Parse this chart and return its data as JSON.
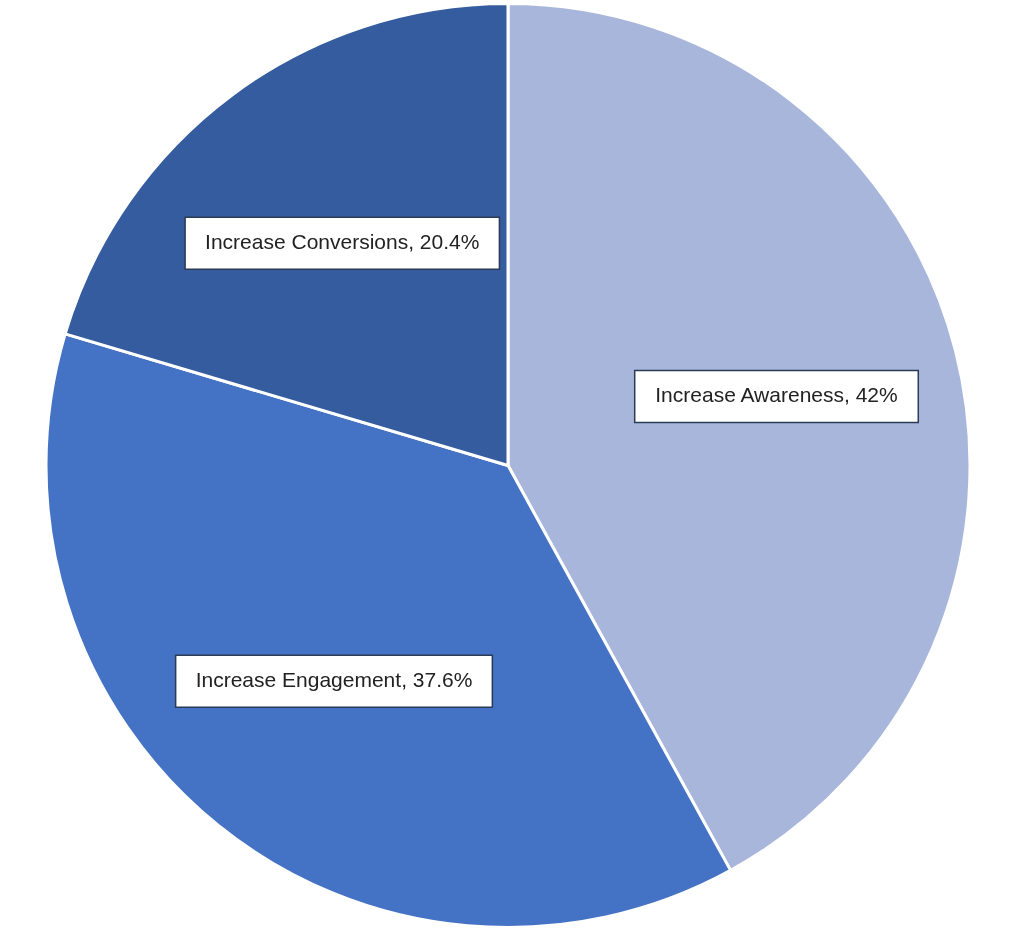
{
  "chart_data": {
    "type": "pie",
    "categories": [
      "Increase Awareness",
      "Increase Engagement",
      "Increase Conversions"
    ],
    "values": [
      42,
      37.6,
      20.4
    ],
    "colors": [
      "#a9b6dc",
      "#4472c4",
      "#345c9f"
    ],
    "value_labels": [
      "42%",
      "37.6%",
      "20.4%"
    ],
    "legend": false
  }
}
